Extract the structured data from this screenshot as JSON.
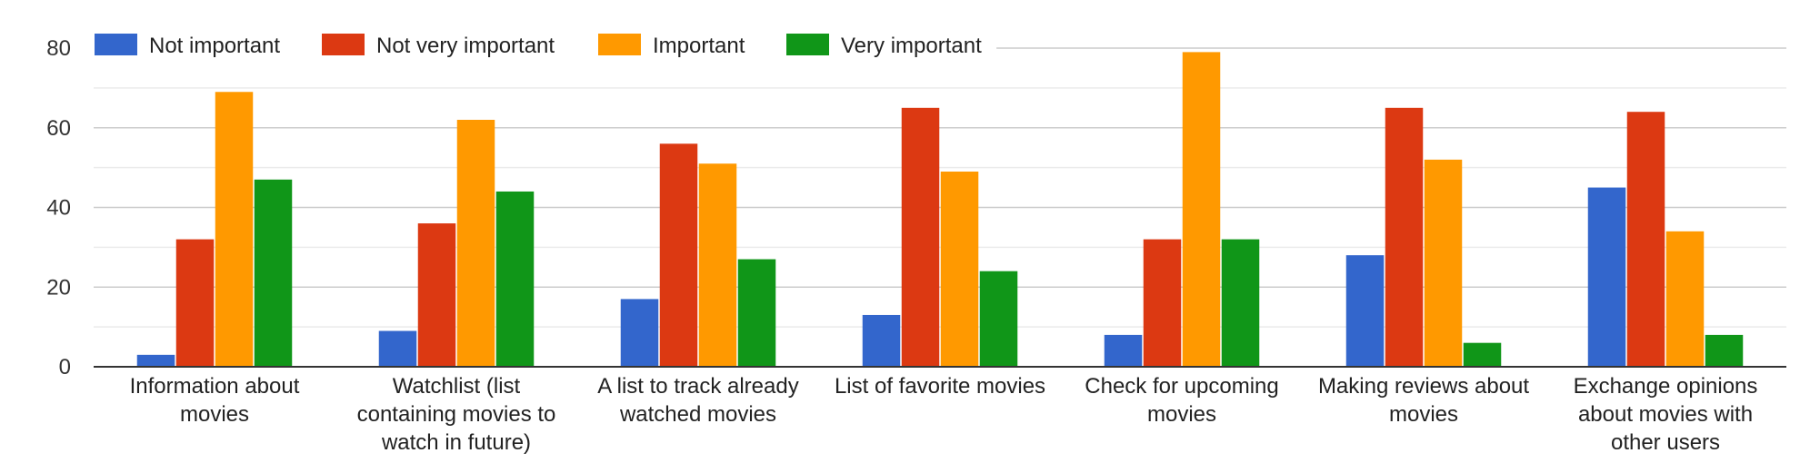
{
  "chart_data": {
    "type": "bar",
    "categories": [
      [
        "Information about",
        "movies"
      ],
      [
        "Watchlist (list",
        "containing movies to",
        "watch in future)"
      ],
      [
        "A list to track already",
        "watched movies"
      ],
      [
        "List of favorite movies"
      ],
      [
        "Check for upcoming",
        "movies"
      ],
      [
        "Making reviews about",
        "movies"
      ],
      [
        "Exchange opinions",
        "about movies with",
        "other users"
      ]
    ],
    "series": [
      {
        "name": "Not important",
        "color": "#3366cc",
        "values": [
          3,
          9,
          17,
          13,
          8,
          28,
          45
        ]
      },
      {
        "name": "Not very important",
        "color": "#dc3912",
        "values": [
          32,
          36,
          56,
          65,
          32,
          65,
          64
        ]
      },
      {
        "name": "Important",
        "color": "#ff9900",
        "values": [
          69,
          62,
          51,
          49,
          79,
          52,
          34
        ]
      },
      {
        "name": "Very important",
        "color": "#109618",
        "values": [
          47,
          44,
          27,
          24,
          32,
          6,
          8
        ]
      }
    ],
    "ylim": [
      0,
      80
    ],
    "yticks": [
      0,
      20,
      40,
      60,
      80
    ],
    "grid": true,
    "legend": "top"
  }
}
